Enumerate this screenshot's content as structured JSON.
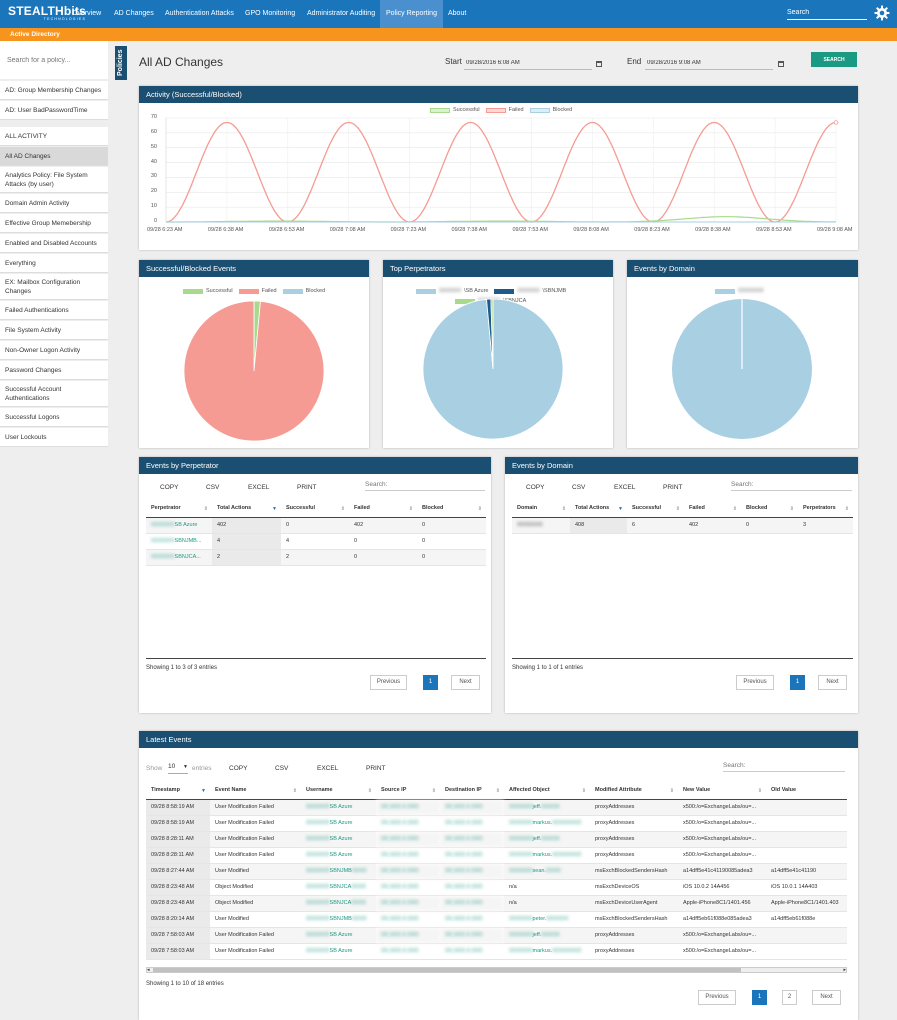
{
  "app": {
    "logo": "STEALTHbits",
    "logo_sub": "TECHNOLOGIES"
  },
  "nav": {
    "items": [
      "Overview",
      "AD Changes",
      "Authentication Attacks",
      "GPO Monitoring",
      "Administrator Auditing",
      "Policy Reporting",
      "About"
    ],
    "active": "Policy Reporting",
    "search_placeholder": "Search"
  },
  "subbar": {
    "label": "Active Directory"
  },
  "sidebar": {
    "search_placeholder": "Search for a policy...",
    "tab_label": "Policies",
    "items": [
      "AD: Group Membership Changes",
      "AD: User BadPasswordTime",
      "ALL ACTIVITY",
      "All AD Changes",
      "Analytics Policy: File System Attacks (by user)",
      "Domain Admin Activity",
      "Effective Group Memebership",
      "Enabled and Disabled Accounts",
      "Everything",
      "EX: Mailbox Configuration Changes",
      "Failed Authentications",
      "File System Activity",
      "Non-Owner Logon Activity",
      "Password Changes",
      "Successful Account Authentications",
      "Successful Logons",
      "User Lockouts"
    ],
    "selected": "All AD Changes"
  },
  "page": {
    "title": "All AD Changes",
    "start_label": "Start",
    "start_value": "09/28/2016 6:08 AM",
    "end_label": "End",
    "end_value": "09/28/2016 9:08 AM",
    "search_button": "SEARCH"
  },
  "activity_chart": {
    "title": "Activity (Successful/Blocked)",
    "legend": [
      "Successful",
      "Failed",
      "Blocked"
    ],
    "colors": {
      "successful": "#a8d98d",
      "failed": "#f59b93",
      "blocked": "#a9cfe3"
    }
  },
  "chart_data": {
    "type": "line",
    "title": "Activity (Successful/Blocked)",
    "x": [
      "09/28 6:23 AM",
      "09/28 6:38 AM",
      "09/28 6:53 AM",
      "09/28 7:08 AM",
      "09/28 7:23 AM",
      "09/28 7:38 AM",
      "09/28 7:53 AM",
      "09/28 8:08 AM",
      "09/28 8:23 AM",
      "09/28 8:38 AM",
      "09/28 8:53 AM",
      "09/28 9:08 AM"
    ],
    "ylim": [
      0,
      70
    ],
    "yticks": [
      0,
      10,
      20,
      30,
      40,
      50,
      60,
      70
    ],
    "series": [
      {
        "name": "Failed",
        "color": "#f59b93",
        "peaks": [
          {
            "x": "09/28 6:38 AM",
            "y": 67
          },
          {
            "x": "09/28 7:08 AM",
            "y": 67
          },
          {
            "x": "09/28 7:38 AM",
            "y": 67
          },
          {
            "x": "09/28 8:08 AM",
            "y": 67
          },
          {
            "x": "09/28 8:38 AM",
            "y": 67
          },
          {
            "x": "09/28 9:08 AM",
            "y": 67
          }
        ],
        "baseline": 0
      },
      {
        "name": "Successful",
        "color": "#a8d98d",
        "approx_max": 3
      },
      {
        "name": "Blocked",
        "color": "#a9cfe3",
        "approx_max": 0
      }
    ]
  },
  "pies": {
    "events": {
      "title": "Successful/Blocked Events",
      "legend": [
        "Successful",
        "Failed",
        "Blocked"
      ],
      "values": [
        6,
        402,
        0
      ]
    },
    "perpetrators": {
      "title": "Top Perpetrators",
      "legend": [
        "\\SB Azure",
        "\\SBNJMB",
        "\\SBNJCA"
      ],
      "legend_prefix": "XXXXXX",
      "values": [
        402,
        4,
        2
      ]
    },
    "domains": {
      "title": "Events by Domain",
      "legend": [
        "XXXXXXX"
      ],
      "values": [
        408
      ]
    }
  },
  "perp_table": {
    "title": "Events by Perpetrator",
    "buttons": [
      "COPY",
      "CSV",
      "EXCEL",
      "PRINT"
    ],
    "search_placeholder": "Search:",
    "columns": [
      "Perpetrator",
      "Total Actions",
      "Successful",
      "Failed",
      "Blocked"
    ],
    "rows": [
      [
        "XXXXXX\\SB Azure",
        "402",
        "0",
        "402",
        "0"
      ],
      [
        "XXXXXX\\SBNJMB...",
        "4",
        "4",
        "0",
        "0"
      ],
      [
        "XXXXXX\\SBNJCA...",
        "2",
        "2",
        "0",
        "0"
      ]
    ],
    "showing": "Showing 1 to 3 of 3 entries",
    "prev": "Previous",
    "page": "1",
    "next": "Next"
  },
  "domain_table": {
    "title": "Events by Domain",
    "buttons": [
      "COPY",
      "CSV",
      "EXCEL",
      "PRINT"
    ],
    "search_placeholder": "Search:",
    "columns": [
      "Domain",
      "Total Actions",
      "Successful",
      "Failed",
      "Blocked",
      "Perpetrators"
    ],
    "rows": [
      [
        "XXXXXXX",
        "408",
        "6",
        "402",
        "0",
        "3"
      ]
    ],
    "showing": "Showing 1 to 1 of 1 entries",
    "prev": "Previous",
    "page": "1",
    "next": "Next"
  },
  "latest": {
    "title": "Latest Events",
    "show_label": "Show",
    "show_value": "10",
    "entries_label": "entries",
    "buttons": [
      "COPY",
      "CSV",
      "EXCEL",
      "PRINT"
    ],
    "search_placeholder": "Search:",
    "columns": [
      "Timestamp",
      "Event Name",
      "Username",
      "Source IP",
      "Destination IP",
      "Affected Object",
      "Modified Attribute",
      "New Value",
      "Old Value"
    ],
    "rows": [
      [
        "09/28 8:58:19 AM",
        "User Modification Failed",
        "XXXXXX\\SB Azure",
        "XX.XXX.X.XXX",
        "XX.XXX.X.XXX",
        "XXXXXX\\jeff.XXXXX",
        "proxyAddresses",
        "x500:/o=ExchangeLabs/ou=...",
        ""
      ],
      [
        "09/28 8:58:19 AM",
        "User Modification Failed",
        "XXXXXX\\SB Azure",
        "XX.XXX.X.XXX",
        "XX.XXX.X.XXX",
        "XXXXXX\\markus.XXXXXXXX",
        "proxyAddresses",
        "x500:/o=ExchangeLabs/ou=...",
        ""
      ],
      [
        "09/28 8:28:11 AM",
        "User Modification Failed",
        "XXXXXX\\SB Azure",
        "XX.XXX.X.XXX",
        "XX.XXX.X.XXX",
        "XXXXXX\\jeff.XXXXX",
        "proxyAddresses",
        "x500:/o=ExchangeLabs/ou=...",
        ""
      ],
      [
        "09/28 8:28:11 AM",
        "User Modification Failed",
        "XXXXXX\\SB Azure",
        "XX.XXX.X.XXX",
        "XX.XXX.X.XXX",
        "XXXXXX\\markus.XXXXXXXX",
        "proxyAddresses",
        "x500:/o=ExchangeLabs/ou=...",
        ""
      ],
      [
        "09/28 8:27:44 AM",
        "User Modified",
        "XXXXXX\\SBNJMBXXXX",
        "XX.XXX.X.XXX",
        "XX.XXX.X.XXX",
        "XXXXXX\\sean.XXXX",
        "msExchBlockedSendersHash",
        "a14dff5e41c41190085adea3",
        "a14dff5e41c41190"
      ],
      [
        "09/28 8:23:48 AM",
        "Object Modified",
        "XXXXXX\\SBNJCAXXXX",
        "XX.XXX.X.XXX",
        "XX.XXX.X.XXX",
        "n/a",
        "msExchDeviceOS",
        "iOS 10.0.2 14A456",
        "iOS 10.0.1 14A403"
      ],
      [
        "09/28 8:23:48 AM",
        "Object Modified",
        "XXXXXX\\SBNJCAXXXX",
        "XX.XXX.X.XXX",
        "XX.XXX.X.XXX",
        "n/a",
        "msExchDeviceUserAgent",
        "Apple-iPhone8C1/1401.456",
        "Apple-iPhone8C1/1401.403"
      ],
      [
        "09/28 8:20:14 AM",
        "User Modified",
        "XXXXXX\\SBNJMBXXXX",
        "XX.XXX.X.XXX",
        "XX.XXX.X.XXX",
        "XXXXXX\\peter.XXXXXX",
        "msExchBlockedSendersHash",
        "a14dff5eb61f088e085adea3",
        "a14dff5eb61f088e"
      ],
      [
        "09/28 7:58:03 AM",
        "User Modification Failed",
        "XXXXXX\\SB Azure",
        "XX.XXX.X.XXX",
        "XX.XXX.X.XXX",
        "XXXXXX\\jeff.XXXXX",
        "proxyAddresses",
        "x500:/o=ExchangeLabs/ou=...",
        ""
      ],
      [
        "09/28 7:58:03 AM",
        "User Modification Failed",
        "XXXXXX\\SB Azure",
        "XX.XXX.X.XXX",
        "XX.XXX.X.XXX",
        "XXXXXX\\markus.XXXXXXXX",
        "proxyAddresses",
        "x500:/o=ExchangeLabs/ou=...",
        ""
      ]
    ],
    "showing": "Showing 1 to 10 of 18 entries",
    "prev": "Previous",
    "pages": [
      "1",
      "2"
    ],
    "next": "Next"
  }
}
